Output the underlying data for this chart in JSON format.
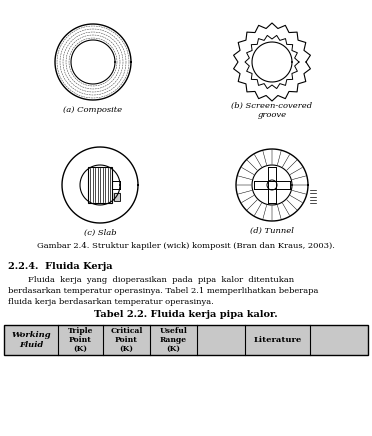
{
  "title": "Tabel 2.2. Fluida kerja pipa kalor.",
  "section_title": "2.2.4.  Fluida Kerja",
  "paragraph1": "Fluida  kerja  yang  dioperasikan  pada  pipa  kalor  ditentukan",
  "paragraph2": "berdasarkan temperatur operasinya. Tabel 2.1 memperlihatkan beberapa",
  "paragraph3": "fluida kerja berdasarkan temperatur operasinya.",
  "header_bg": "#c8c8c8",
  "fig_bg": "#ffffff",
  "fig_caption": "Gambar 2.4. Struktur kapiler (wick) komposit (Bran dan Kraus, 2003).",
  "label_a": "(a) Composite",
  "label_b": "(b) Screen-covered\ngroove",
  "label_c": "(c) Slab",
  "label_d": "(d) Tunnel"
}
